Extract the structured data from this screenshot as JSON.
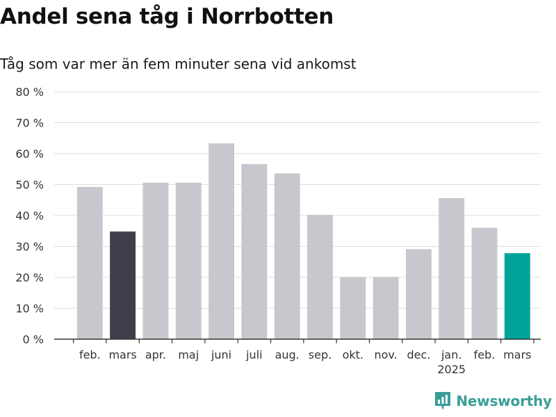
{
  "title": "Andel sena tåg i Norrbotten",
  "subtitle": "Tåg som var mer än fem minuter sena vid ankomst",
  "brand": {
    "name": "Newsworthy",
    "color": "#3a9e96",
    "icon": "bar-chart-bubble-icon"
  },
  "chart_data": {
    "type": "bar",
    "title": "Andel sena tåg i Norrbotten",
    "subtitle": "Tåg som var mer än fem minuter sena vid ankomst",
    "xlabel": "",
    "ylabel": "",
    "ylim": [
      0,
      80
    ],
    "yticks": [
      0,
      10,
      20,
      30,
      40,
      50,
      60,
      70,
      80
    ],
    "ytick_labels": [
      "0 %",
      "10 %",
      "20 %",
      "30 %",
      "40 %",
      "50 %",
      "60 %",
      "70 %",
      "80 %"
    ],
    "grid": true,
    "legend": "none",
    "categories": [
      "feb.",
      "mars",
      "apr.",
      "maj",
      "juni",
      "juli",
      "aug.",
      "sep.",
      "okt.",
      "nov.",
      "dec.",
      "jan.",
      "feb.",
      "mars"
    ],
    "year_labels": [
      {
        "category_index": 11,
        "label": "2025"
      }
    ],
    "values": [
      49.2,
      34.8,
      50.6,
      50.6,
      63.3,
      56.6,
      53.6,
      40.2,
      20.1,
      20.1,
      29.1,
      45.6,
      36.0,
      27.8
    ],
    "colors": [
      "#c8c7cd",
      "#3f3f4c",
      "#c8c7cd",
      "#c8c7cd",
      "#c8c7cd",
      "#c8c7cd",
      "#c8c7cd",
      "#c8c7cd",
      "#c8c7cd",
      "#c8c7cd",
      "#c8c7cd",
      "#c8c7cd",
      "#c8c7cd",
      "#00a398"
    ]
  }
}
